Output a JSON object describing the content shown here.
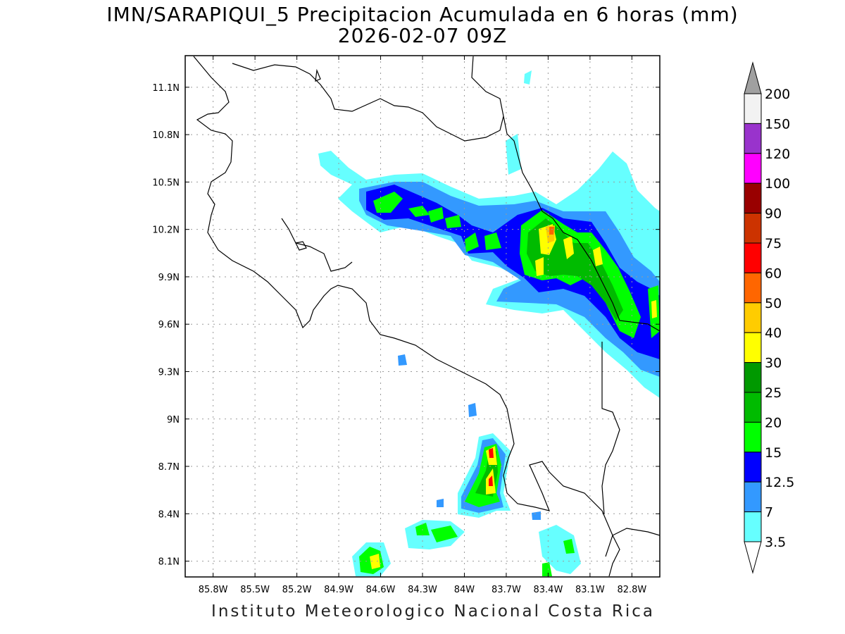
{
  "title_line1": "IMN/SARAPIQUI_5 Precipitacion Acumulada en 6 horas (mm)",
  "title_line2": "2026-02-07 09Z",
  "footer": "Instituto Meteorologico Nacional Costa Rica",
  "lat_ticks": [
    "11.1N",
    "10.8N",
    "10.5N",
    "10.2N",
    "9.9N",
    "9.6N",
    "9.3N",
    "9N",
    "8.7N",
    "8.4N",
    "8.1N"
  ],
  "lon_ticks": [
    "85.8W",
    "85.5W",
    "85.2W",
    "84.9W",
    "84.6W",
    "84.3W",
    "84W",
    "83.7W",
    "83.4W",
    "83.1W",
    "82.8W"
  ],
  "colorbar": {
    "labels": [
      "200",
      "150",
      "120",
      "100",
      "90",
      "75",
      "60",
      "50",
      "40",
      "30",
      "25",
      "20",
      "15",
      "12.5",
      "7",
      "3.5"
    ],
    "colors": [
      "#a0a0a0",
      "#f2f2f2",
      "#9933cc",
      "#ff00ff",
      "#990000",
      "#cc3300",
      "#ff0000",
      "#ff6600",
      "#ffcc00",
      "#ffff00",
      "#009900",
      "#00bb00",
      "#00ff00",
      "#0000ff",
      "#3399ff",
      "#66ffff"
    ],
    "bottom_color": "#ffffff"
  },
  "map_extent": {
    "lon_min": -86.0,
    "lon_max": -82.6,
    "lat_min": 8.0,
    "lat_max": 11.3
  }
}
